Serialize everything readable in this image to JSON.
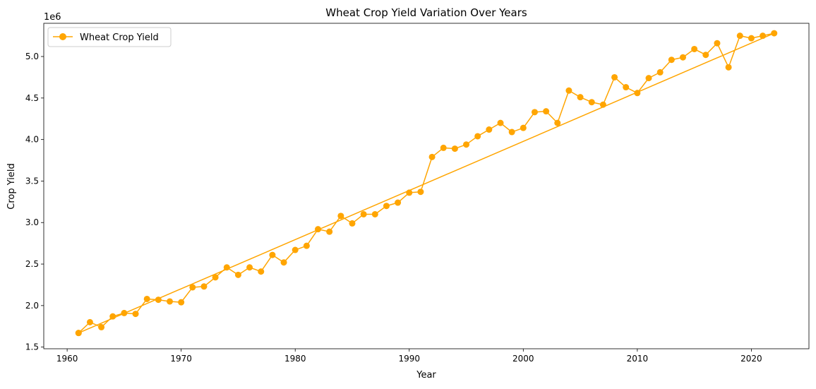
{
  "chart_data": {
    "type": "line",
    "title": "Wheat Crop Yield Variation Over Years",
    "xlabel": "Year",
    "ylabel": "Crop Yield",
    "y_offset_label": "1e6",
    "xlim": [
      1957.95,
      2025.05
    ],
    "ylim": [
      1.48,
      5.4
    ],
    "x_ticks": [
      1960,
      1970,
      1980,
      1990,
      2000,
      2010,
      2020
    ],
    "y_ticks": [
      1.5,
      2.0,
      2.5,
      3.0,
      3.5,
      4.0,
      4.5,
      5.0
    ],
    "y_tick_labels": [
      "1.5",
      "2.0",
      "2.5",
      "3.0",
      "3.5",
      "4.0",
      "4.5",
      "5.0"
    ],
    "grid": false,
    "legend_position": "upper-left",
    "colors": {
      "series": "#FFA500",
      "axis": "#000000",
      "background": "#ffffff"
    },
    "series": [
      {
        "name": "Wheat Crop Yield",
        "marker": "circle",
        "note_order": "points connected in list order",
        "points": [
          [
            1961,
            1.67
          ],
          [
            1962,
            1.8
          ],
          [
            1963,
            1.74
          ],
          [
            1964,
            1.87
          ],
          [
            1965,
            1.91
          ],
          [
            1966,
            1.9
          ],
          [
            1967,
            2.08
          ],
          [
            1968,
            2.07
          ],
          [
            1969,
            2.05
          ],
          [
            1970,
            2.04
          ],
          [
            1971,
            2.22
          ],
          [
            1972,
            2.23
          ],
          [
            1973,
            2.34
          ],
          [
            1974,
            2.46
          ],
          [
            1975,
            2.37
          ],
          [
            1976,
            2.46
          ],
          [
            1977,
            2.41
          ],
          [
            1978,
            2.61
          ],
          [
            1979,
            2.52
          ],
          [
            1980,
            2.67
          ],
          [
            1981,
            2.72
          ],
          [
            1982,
            2.92
          ],
          [
            1983,
            2.89
          ],
          [
            1984,
            3.08
          ],
          [
            1985,
            2.99
          ],
          [
            1986,
            3.1
          ],
          [
            1987,
            3.1
          ],
          [
            1988,
            3.2
          ],
          [
            1989,
            3.24
          ],
          [
            1990,
            3.36
          ],
          [
            1991,
            3.37
          ],
          [
            1992,
            3.79
          ],
          [
            1993,
            3.9
          ],
          [
            1994,
            3.89
          ],
          [
            1995,
            3.94
          ],
          [
            1996,
            4.04
          ],
          [
            1997,
            4.12
          ],
          [
            1998,
            4.2
          ],
          [
            1999,
            4.09
          ],
          [
            2000,
            4.14
          ],
          [
            2001,
            4.33
          ],
          [
            2002,
            4.34
          ],
          [
            2003,
            4.2
          ],
          [
            2004,
            4.59
          ],
          [
            2005,
            4.51
          ],
          [
            2006,
            4.45
          ],
          [
            2007,
            4.42
          ],
          [
            2008,
            4.75
          ],
          [
            2009,
            4.63
          ],
          [
            2010,
            4.56
          ],
          [
            2011,
            4.74
          ],
          [
            2012,
            4.81
          ],
          [
            2013,
            4.96
          ],
          [
            2014,
            4.99
          ],
          [
            2015,
            5.09
          ],
          [
            2016,
            5.02
          ],
          [
            2017,
            5.16
          ],
          [
            2018,
            4.87
          ],
          [
            2019,
            5.25
          ],
          [
            2020,
            5.22
          ],
          [
            2021,
            5.25
          ],
          [
            2022,
            5.28
          ],
          [
            1961,
            1.67
          ]
        ]
      }
    ]
  }
}
